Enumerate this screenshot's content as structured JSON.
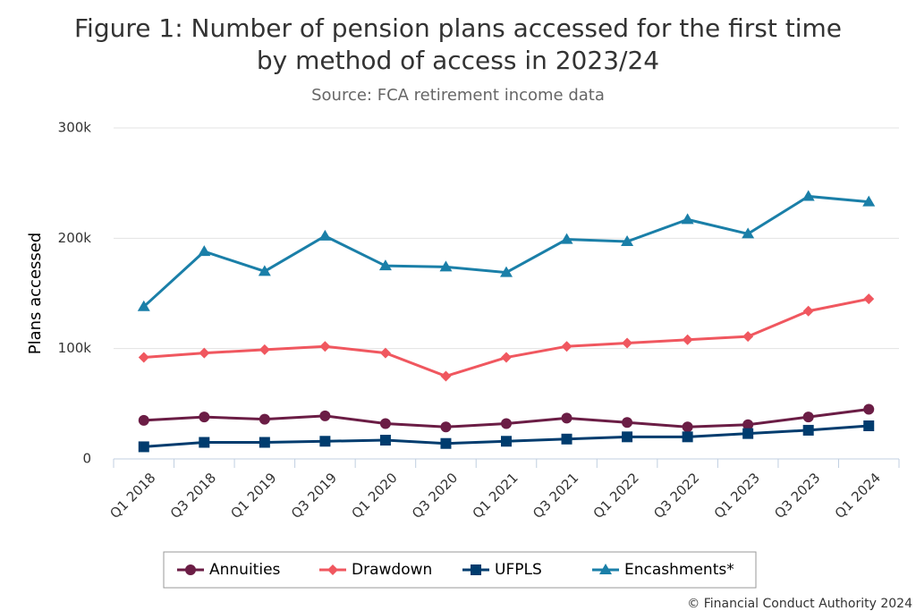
{
  "chart_data": {
    "type": "line",
    "title": "Figure 1: Number of pension plans accessed for the first time by method of access in 2023/24",
    "subtitle": "Source: FCA retirement income data",
    "y_label": "Plans accessed",
    "footer": "© Financial Conduct Authority 2024",
    "categories": [
      "Q1 2018",
      "Q3 2018",
      "Q1 2019",
      "Q3 2019",
      "Q1 2020",
      "Q3 2020",
      "Q1 2021",
      "Q3 2021",
      "Q1 2022",
      "Q3 2022",
      "Q1 2023",
      "Q3 2023",
      "Q1 2024"
    ],
    "series": [
      {
        "name": "Annuities",
        "color": "#6b1d45",
        "marker": "circle",
        "values": [
          35000,
          38000,
          36000,
          39000,
          32000,
          29000,
          32000,
          37000,
          33000,
          29000,
          31000,
          38000,
          45000
        ]
      },
      {
        "name": "Drawdown",
        "color": "#f0575f",
        "marker": "diamond",
        "values": [
          92000,
          96000,
          99000,
          102000,
          96000,
          75000,
          92000,
          102000,
          105000,
          108000,
          111000,
          134000,
          145000
        ]
      },
      {
        "name": "UFPLS",
        "color": "#003c6e",
        "marker": "square",
        "values": [
          11000,
          15000,
          15000,
          16000,
          17000,
          14000,
          16000,
          18000,
          20000,
          20000,
          23000,
          26000,
          30000
        ]
      },
      {
        "name": "Encashments*",
        "color": "#1a7fa8",
        "marker": "triangle",
        "values": [
          138000,
          188000,
          170000,
          202000,
          175000,
          174000,
          169000,
          199000,
          197000,
          217000,
          204000,
          238000,
          233000
        ]
      }
    ],
    "ylim": [
      0,
      300000
    ],
    "yticks": [
      0,
      {
        "value": 100000,
        "label": "100k"
      },
      {
        "value": 200000,
        "label": "200k"
      },
      {
        "value": 300000,
        "label": "300k"
      }
    ],
    "grid": true
  }
}
